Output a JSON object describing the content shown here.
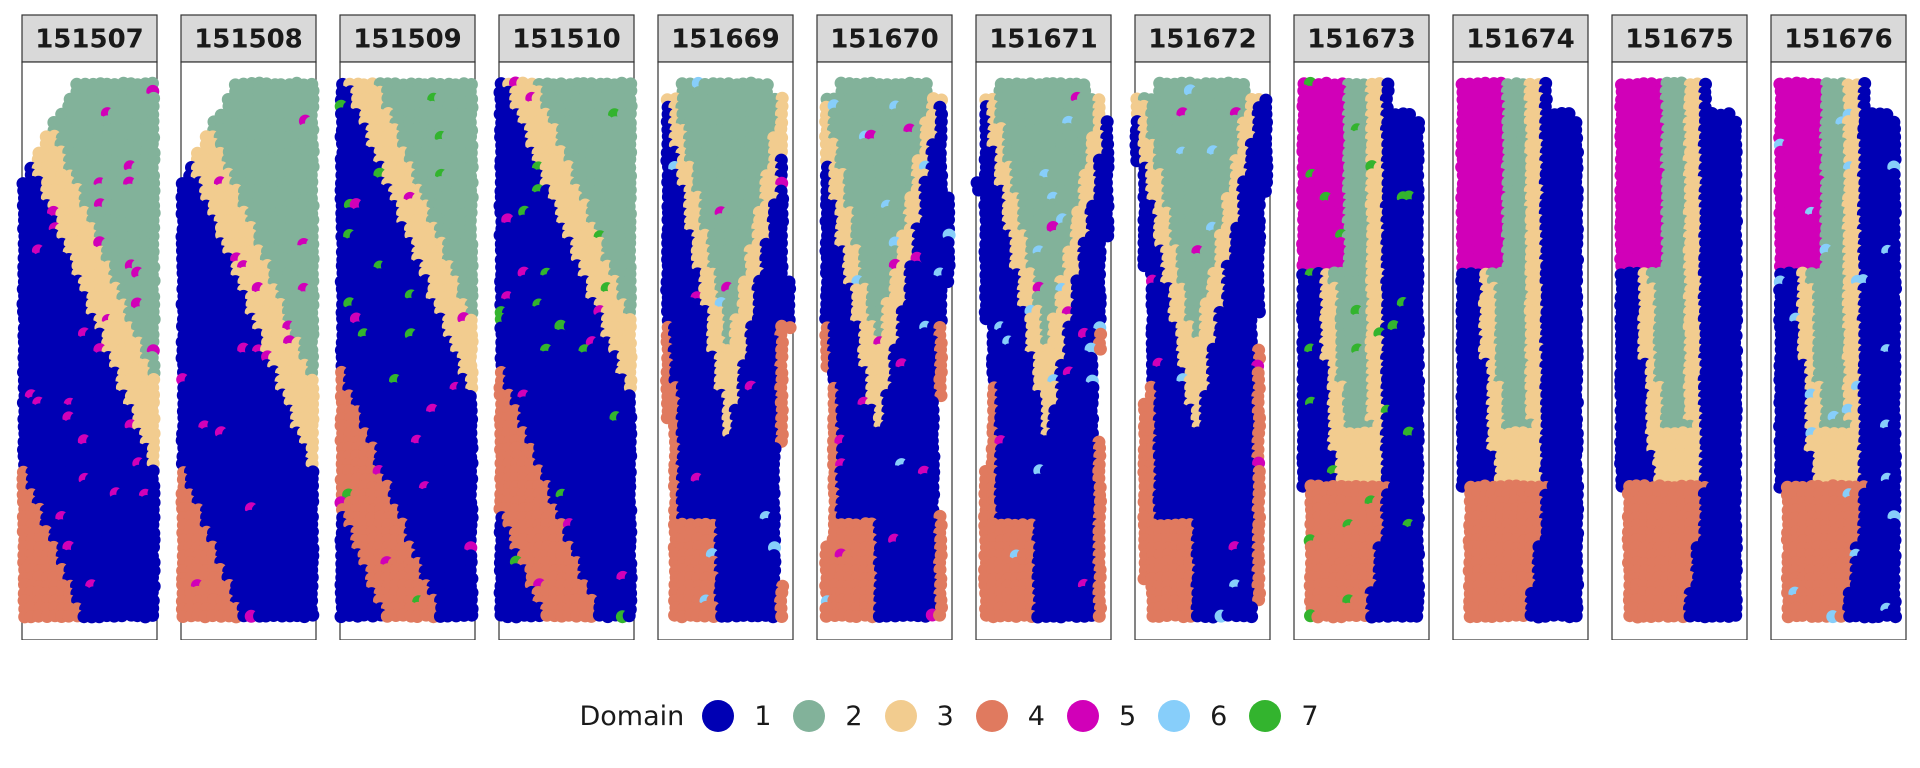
{
  "chart_data": {
    "type": "scatter",
    "description_type": "spatial-domain-facets",
    "legend": {
      "title": "Domain",
      "placement": "bottom",
      "entries": [
        {
          "label": "1",
          "color": "#0000B4"
        },
        {
          "label": "2",
          "color": "#82B29A"
        },
        {
          "label": "3",
          "color": "#F2CC8F"
        },
        {
          "label": "4",
          "color": "#E07A5F"
        },
        {
          "label": "5",
          "color": "#D100B8"
        },
        {
          "label": "6",
          "color": "#87CEFA"
        },
        {
          "label": "7",
          "color": "#33B42E"
        }
      ]
    },
    "panels": [
      {
        "label": "151507",
        "style": "diagonal",
        "layers": [
          "2",
          "3",
          "1",
          "4"
        ],
        "minor": [
          "5"
        ]
      },
      {
        "label": "151508",
        "style": "diagonal",
        "layers": [
          "2",
          "3",
          "1",
          "4"
        ],
        "minor": [
          "5"
        ]
      },
      {
        "label": "151509",
        "style": "diagonal",
        "layers": [
          "2",
          "3",
          "1",
          "4",
          "1"
        ],
        "minor": [
          "5",
          "7"
        ]
      },
      {
        "label": "151510",
        "style": "diagonal",
        "layers": [
          "2",
          "3",
          "1",
          "4",
          "1"
        ],
        "minor": [
          "5",
          "7"
        ]
      },
      {
        "label": "151669",
        "style": "funnel",
        "layers": [
          "2",
          "3",
          "1",
          "4"
        ],
        "minor": [
          "5",
          "6"
        ]
      },
      {
        "label": "151670",
        "style": "funnel",
        "layers": [
          "2",
          "3",
          "1",
          "4"
        ],
        "minor": [
          "5",
          "6"
        ]
      },
      {
        "label": "151671",
        "style": "funnel",
        "layers": [
          "2",
          "3",
          "1",
          "4"
        ],
        "minor": [
          "5",
          "6"
        ]
      },
      {
        "label": "151672",
        "style": "funnel",
        "layers": [
          "2",
          "3",
          "1",
          "4"
        ],
        "minor": [
          "5",
          "6"
        ]
      },
      {
        "label": "151673",
        "style": "column",
        "layers": [
          "5",
          "2",
          "3",
          "1",
          "4"
        ],
        "minor": [
          "7"
        ]
      },
      {
        "label": "151674",
        "style": "column",
        "layers": [
          "5",
          "2",
          "3",
          "1",
          "4"
        ],
        "minor": []
      },
      {
        "label": "151675",
        "style": "column",
        "layers": [
          "5",
          "2",
          "3",
          "1",
          "4"
        ],
        "minor": []
      },
      {
        "label": "151676",
        "style": "column",
        "layers": [
          "5",
          "2",
          "3",
          "1",
          "4"
        ],
        "minor": [
          "6"
        ]
      }
    ]
  }
}
